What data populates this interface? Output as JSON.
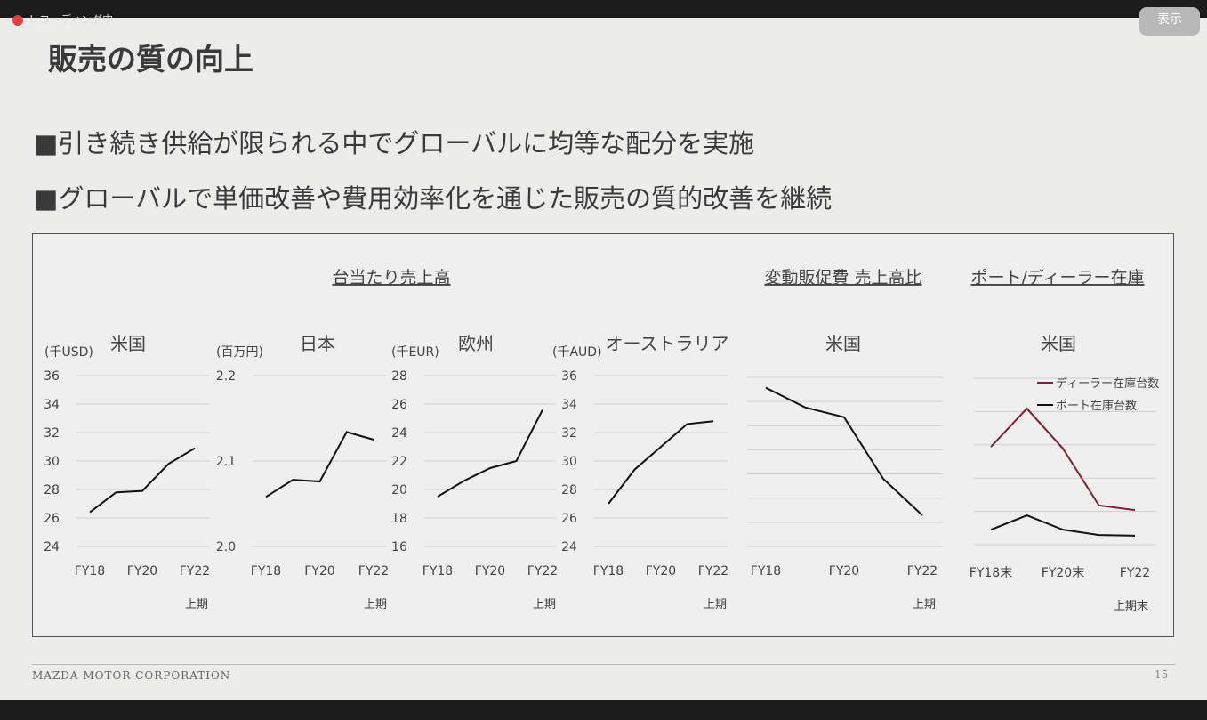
{
  "ui": {
    "recording": "レコーディング中",
    "view_button": "表示"
  },
  "slide": {
    "title": "販売の質の向上",
    "bullets": [
      "■引き続き供給が限られる中でグローバルに均等な配分を実施",
      "■グローバルで単価改善や費用効率化を通じた販売の質的改善を継続"
    ],
    "sections": [
      "台当たり売上高",
      "変動販促費 売上高比",
      "ポート/ディーラー在庫"
    ],
    "footer": "MAZDA MOTOR CORPORATION",
    "page": "15"
  },
  "chart_data": [
    {
      "type": "line",
      "title": "米国",
      "unit": "(千USD)",
      "categories": [
        "FY18",
        null,
        "FY20",
        null,
        "FY22"
      ],
      "period_note": "上期",
      "series": [
        {
          "color": "#111111",
          "values": [
            26.4,
            27.8,
            27.9,
            29.8,
            30.9
          ]
        }
      ],
      "ylim": [
        24,
        36
      ],
      "yticks": [
        24,
        26,
        28,
        30,
        32,
        34,
        36
      ],
      "grid": true
    },
    {
      "type": "line",
      "title": "日本",
      "unit": "(百万円)",
      "categories": [
        "FY18",
        null,
        "FY20",
        null,
        "FY22"
      ],
      "period_note": "上期",
      "series": [
        {
          "color": "#111111",
          "values": [
            2.058,
            2.078,
            2.076,
            2.134,
            2.125
          ]
        }
      ],
      "ylim": [
        2.0,
        2.2
      ],
      "yticks": [
        {
          "value": 2.0,
          "label": "2.0"
        },
        2.1,
        2.2
      ],
      "grid": true
    },
    {
      "type": "line",
      "title": "欧州",
      "unit": "(千EUR)",
      "categories": [
        "FY18",
        null,
        "FY20",
        null,
        "FY22"
      ],
      "period_note": "上期",
      "series": [
        {
          "color": "#111111",
          "values": [
            19.5,
            20.6,
            21.5,
            22.0,
            25.6
          ]
        }
      ],
      "ylim": [
        16,
        28
      ],
      "yticks": [
        16,
        18,
        20,
        22,
        24,
        26,
        28
      ],
      "grid": true
    },
    {
      "type": "line",
      "title": "オーストラリア",
      "unit": "(千AUD)",
      "categories": [
        "FY18",
        null,
        "FY20",
        null,
        "FY22"
      ],
      "period_note": "上期",
      "series": [
        {
          "color": "#111111",
          "values": [
            27.0,
            29.4,
            31.0,
            32.6,
            32.8
          ]
        }
      ],
      "ylim": [
        24,
        36
      ],
      "yticks": [
        24,
        26,
        28,
        30,
        32,
        34,
        36
      ],
      "grid": true
    },
    {
      "type": "line",
      "title": "米国",
      "categories": [
        "FY18",
        null,
        "FY20",
        null,
        "FY22"
      ],
      "period_note": "上期",
      "series": [
        {
          "color": "#111111",
          "values": [
            6.57,
            5.76,
            5.35,
            2.8,
            1.29
          ]
        }
      ],
      "ylim": [
        0,
        7
      ],
      "yticks": [
        0,
        1,
        2,
        3,
        4,
        5,
        6,
        7
      ],
      "tick_labels": false,
      "grid": true
    },
    {
      "type": "line",
      "title": "米国",
      "categories": [
        "FY18末",
        null,
        "FY20末",
        null,
        "FY22"
      ],
      "period_note": "上期末",
      "series": [
        {
          "name": "ディーラー在庫台数",
          "color": "#7a2233",
          "values": [
            2.94,
            4.09,
            2.89,
            1.18,
            1.04
          ]
        },
        {
          "name": "ポート在庫台数",
          "color": "#111111",
          "values": [
            0.45,
            0.88,
            0.45,
            0.29,
            0.27
          ]
        }
      ],
      "ylim": [
        0,
        5
      ],
      "yticks": [
        0,
        1,
        2,
        3,
        4,
        5
      ],
      "tick_labels": false,
      "grid": true,
      "legend": "top-right"
    }
  ]
}
